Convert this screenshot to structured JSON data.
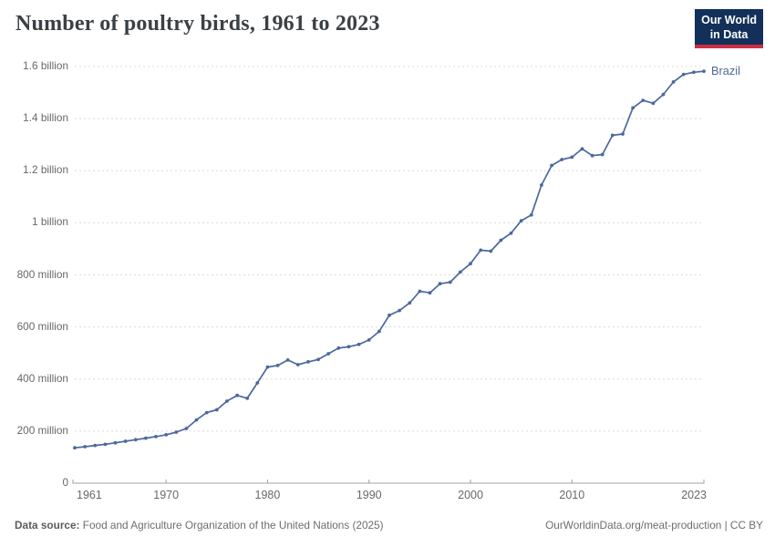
{
  "header": {
    "title": "Number of poultry birds, 1961 to 2023"
  },
  "logo": {
    "line1": "Our World",
    "line2": "in Data",
    "bg_color": "#12305a",
    "accent_color": "#cc2d43"
  },
  "footer": {
    "datasource_label": "Data source:",
    "datasource_text": " Food and Agriculture Organization of the United Nations (2025)",
    "credit": "OurWorldinData.org/meat-production | CC BY"
  },
  "chart_data": {
    "type": "line",
    "title": "Number of poultry birds, 1961 to 2023",
    "xlabel": "",
    "ylabel": "",
    "unit": "million birds",
    "xlim": [
      1961,
      2023
    ],
    "ylim": [
      0,
      1600
    ],
    "grid": "horizontal-dashed",
    "legend_position": "end-of-line-label",
    "colors": {
      "grid": "#dcdcdc",
      "axis": "#a3a3a3",
      "tick_text": "#68686c"
    },
    "x_ticks": [
      1961,
      1970,
      1980,
      1990,
      2000,
      2010,
      2023
    ],
    "y_ticks": [
      {
        "value": 0,
        "label": "0"
      },
      {
        "value": 200,
        "label": "200 million"
      },
      {
        "value": 400,
        "label": "400 million"
      },
      {
        "value": 600,
        "label": "600 million"
      },
      {
        "value": 800,
        "label": "800 million"
      },
      {
        "value": 1000,
        "label": "1 billion"
      },
      {
        "value": 1200,
        "label": "1.2 billion"
      },
      {
        "value": 1400,
        "label": "1.4 billion"
      },
      {
        "value": 1600,
        "label": "1.6 billion"
      }
    ],
    "x": [
      1961,
      1962,
      1963,
      1964,
      1965,
      1966,
      1967,
      1968,
      1969,
      1970,
      1971,
      1972,
      1973,
      1974,
      1975,
      1976,
      1977,
      1978,
      1979,
      1980,
      1981,
      1982,
      1983,
      1984,
      1985,
      1986,
      1987,
      1988,
      1989,
      1990,
      1991,
      1992,
      1993,
      1994,
      1995,
      1996,
      1997,
      1998,
      1999,
      2000,
      2001,
      2002,
      2003,
      2004,
      2005,
      2006,
      2007,
      2008,
      2009,
      2010,
      2011,
      2012,
      2013,
      2014,
      2015,
      2016,
      2017,
      2018,
      2019,
      2020,
      2021,
      2022,
      2023
    ],
    "series": [
      {
        "name": "Brazil",
        "color": "#4c689e",
        "values_unit": "millions",
        "values": [
          136,
          140,
          145,
          149,
          155,
          161,
          167,
          173,
          179,
          186,
          196,
          210,
          243,
          271,
          282,
          315,
          337,
          326,
          385,
          446,
          452,
          473,
          455,
          466,
          475,
          497,
          519,
          524,
          533,
          550,
          583,
          645,
          663,
          692,
          737,
          731,
          766,
          772,
          811,
          843,
          895,
          891,
          933,
          960,
          1008,
          1030,
          1145,
          1220,
          1243,
          1252,
          1284,
          1258,
          1262,
          1336,
          1341,
          1441,
          1470,
          1459,
          1493,
          1541,
          1570,
          1578,
          1582
        ]
      }
    ]
  }
}
